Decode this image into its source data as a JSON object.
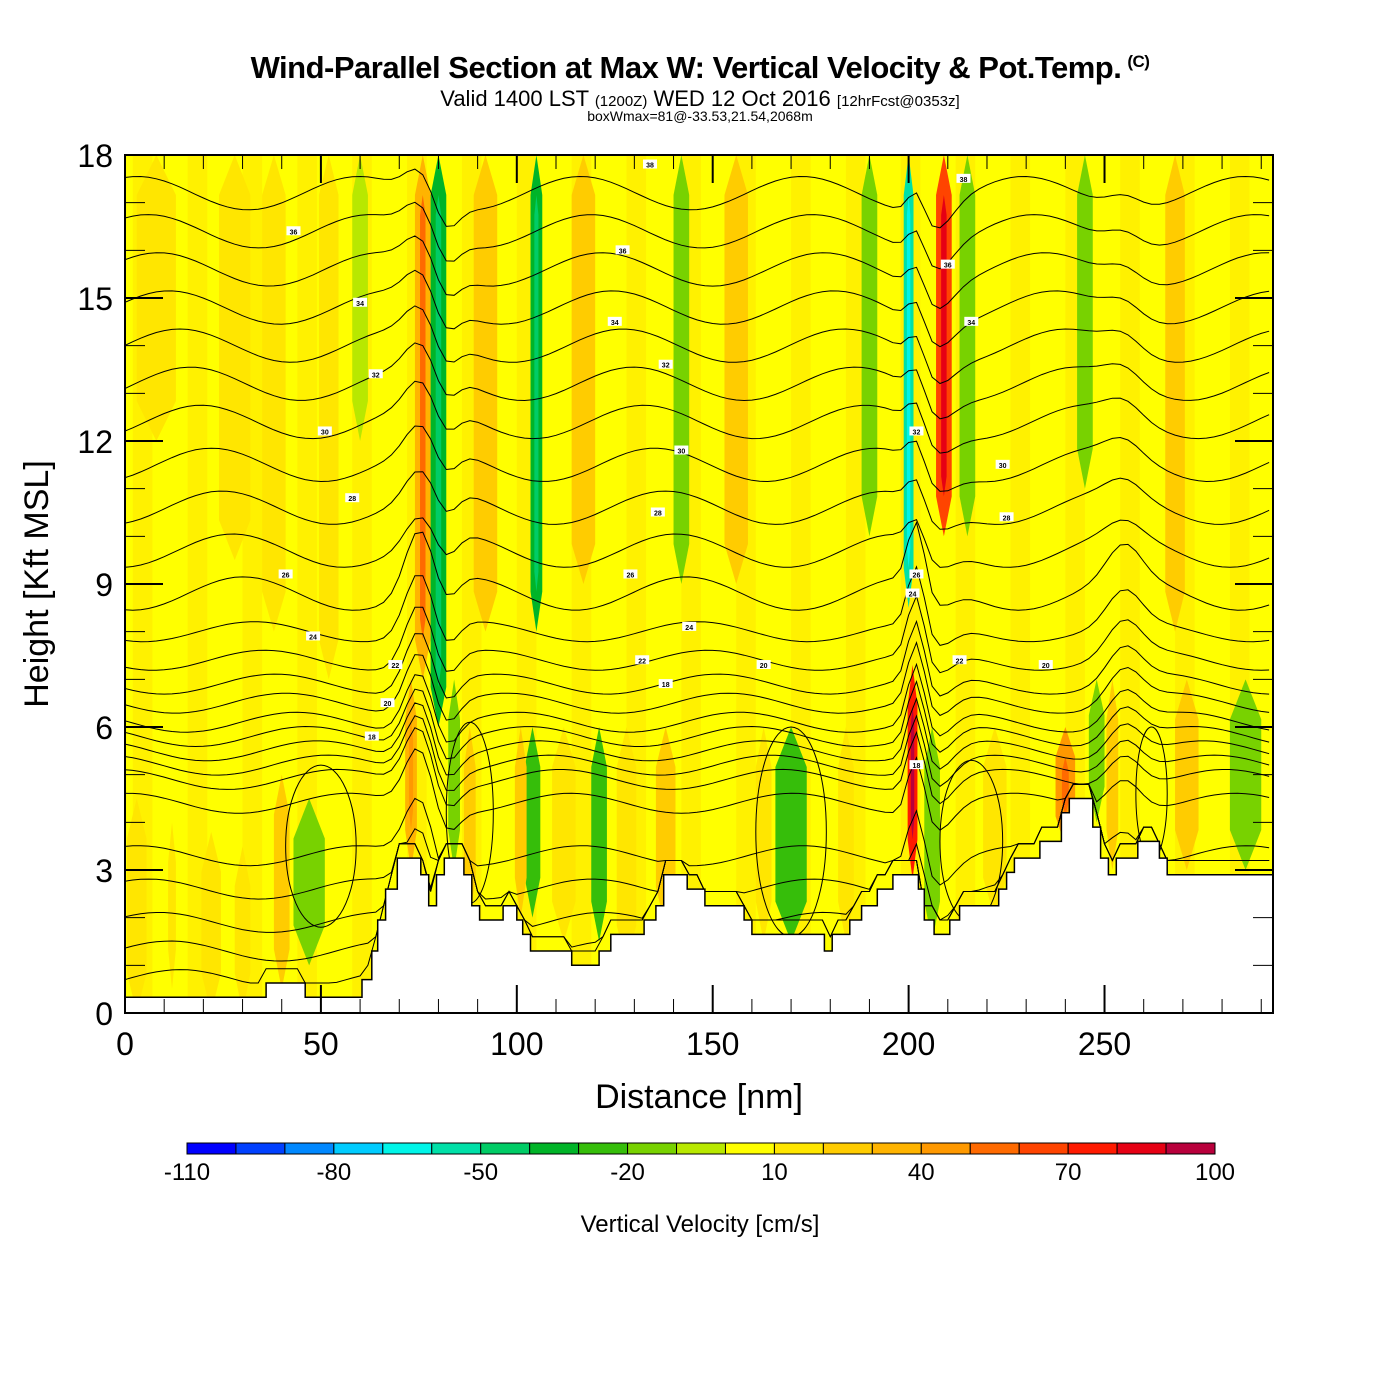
{
  "header": {
    "title": "Wind-Parallel Section at Max W: Vertical Velocity & Pot.Temp.",
    "copyright_mark": "(C)",
    "valid_prefix": "Valid 1400 LST",
    "valid_utc": "(1200Z)",
    "valid_date": "WED 12 Oct 2016",
    "forecast_info": "[12hrFcst@0353z]",
    "box_info": "boxWmax=81@-33.53,21.54,2068m"
  },
  "chart_data": {
    "type": "heatmap",
    "title": "Wind-Parallel Section at Max W: Vertical Velocity & Pot.Temp.",
    "xlabel": "Distance [nm]",
    "ylabel": "Height [Kft MSL]",
    "xlim": [
      0,
      293
    ],
    "ylim": [
      0,
      18
    ],
    "x_ticks": [
      0,
      50,
      100,
      150,
      200,
      250
    ],
    "x_tick_labels": [
      "0",
      "50",
      "100",
      "150",
      "200",
      "250"
    ],
    "x_minor_step": 10,
    "y_ticks": [
      0,
      3,
      6,
      9,
      12,
      15,
      18
    ],
    "y_tick_labels": [
      "0",
      "3",
      "6",
      "9",
      "12",
      "15",
      "18"
    ],
    "y_minor_step": 1,
    "grid": false,
    "colorbar": {
      "label": "Vertical Velocity [cm/s]",
      "placement": "bottom",
      "bounds": [
        -110,
        100
      ],
      "step": 10,
      "tick_values": [
        -110,
        -80,
        -50,
        -20,
        10,
        40,
        70,
        100
      ],
      "tick_labels": [
        "-110",
        "-80",
        "-50",
        "-20",
        "10",
        "40",
        "70",
        "100"
      ],
      "colors": [
        "#0000ff",
        "#0040ff",
        "#0088ff",
        "#00ccff",
        "#00f5e8",
        "#00e0a8",
        "#00cc66",
        "#00b428",
        "#36be0a",
        "#78d200",
        "#b8e800",
        "#ffff00",
        "#ffe600",
        "#ffcc00",
        "#ffb400",
        "#ff9900",
        "#ff6a00",
        "#ff4400",
        "#ff1a00",
        "#e60014",
        "#b8003c"
      ]
    },
    "background_w": 5,
    "w_bands": [
      {
        "x": 3,
        "w": 5,
        "z0": 0,
        "z1": 4.5,
        "value": 10
      },
      {
        "x": 12,
        "w": 2,
        "z0": 0.5,
        "z1": 4,
        "value": 10
      },
      {
        "x": 8,
        "w": 10,
        "z0": 12,
        "z1": 18,
        "value": 10
      },
      {
        "x": 22,
        "w": 5,
        "z0": 0,
        "z1": 3.8,
        "value": 10
      },
      {
        "x": 30,
        "w": 4,
        "z0": 0,
        "z1": 3.5,
        "value": 10
      },
      {
        "x": 28,
        "w": 8,
        "z0": 9.5,
        "z1": 18,
        "value": 10
      },
      {
        "x": 40,
        "w": 4,
        "z0": 0.5,
        "z1": 5,
        "value": 25
      },
      {
        "x": 47,
        "w": 8,
        "z0": 1,
        "z1": 4.5,
        "value": -20
      },
      {
        "x": 38,
        "w": 6,
        "z0": 8,
        "z1": 18,
        "value": 10
      },
      {
        "x": 52,
        "w": 5,
        "z0": 7,
        "z1": 18,
        "value": 10
      },
      {
        "x": 60,
        "w": 4,
        "z0": 12,
        "z1": 18,
        "value": -10
      },
      {
        "x": 73,
        "w": 3,
        "z0": 3,
        "z1": 7,
        "value": 30
      },
      {
        "x": 76,
        "w": 4,
        "z0": 7,
        "z1": 18,
        "value": 35
      },
      {
        "x": 80,
        "w": 4,
        "z0": 6,
        "z1": 18,
        "value": -35
      },
      {
        "x": 84,
        "w": 3,
        "z0": 3,
        "z1": 7,
        "value": -20
      },
      {
        "x": 88,
        "w": 3,
        "z0": 2,
        "z1": 6,
        "value": 25
      },
      {
        "x": 92,
        "w": 6,
        "z0": 8,
        "z1": 18,
        "value": 25
      },
      {
        "x": 104,
        "w": 4,
        "z0": 2,
        "z1": 6,
        "value": -25
      },
      {
        "x": 101,
        "w": 3,
        "z0": 2,
        "z1": 6,
        "value": 25
      },
      {
        "x": 105,
        "w": 3,
        "z0": 8,
        "z1": 18,
        "value": -35
      },
      {
        "x": 112,
        "w": 6,
        "z0": 1.5,
        "z1": 6,
        "value": 10
      },
      {
        "x": 117,
        "w": 6,
        "z0": 9,
        "z1": 18,
        "value": 20
      },
      {
        "x": 121,
        "w": 4,
        "z0": 1.5,
        "z1": 6,
        "value": -25
      },
      {
        "x": 128,
        "w": 5,
        "z0": 1,
        "z1": 6,
        "value": 10
      },
      {
        "x": 138,
        "w": 5,
        "z0": 1.8,
        "z1": 6,
        "value": 25
      },
      {
        "x": 142,
        "w": 4,
        "z0": 9,
        "z1": 18,
        "value": -20
      },
      {
        "x": 156,
        "w": 6,
        "z0": 9,
        "z1": 18,
        "value": 25
      },
      {
        "x": 170,
        "w": 8,
        "z0": 1.5,
        "z1": 6,
        "value": -25
      },
      {
        "x": 163,
        "w": 4,
        "z0": 1.5,
        "z1": 6,
        "value": 10
      },
      {
        "x": 184,
        "w": 4,
        "z0": 1.5,
        "z1": 6,
        "value": 10
      },
      {
        "x": 190,
        "w": 4,
        "z0": 10,
        "z1": 18,
        "value": -20
      },
      {
        "x": 200,
        "w": 2.5,
        "z0": 8.5,
        "z1": 18,
        "value": -55
      },
      {
        "x": 201,
        "w": 2.5,
        "z0": 2.8,
        "z1": 7.3,
        "value": 75
      },
      {
        "x": 209,
        "w": 4,
        "z0": 10,
        "z1": 18,
        "value": 65
      },
      {
        "x": 215,
        "w": 4,
        "z0": 10,
        "z1": 18,
        "value": -20
      },
      {
        "x": 206,
        "w": 4,
        "z0": 1.5,
        "z1": 6,
        "value": -20
      },
      {
        "x": 222,
        "w": 6,
        "z0": 2,
        "z1": 6,
        "value": 10
      },
      {
        "x": 240,
        "w": 5,
        "z0": 3.5,
        "z1": 6,
        "value": 40
      },
      {
        "x": 245,
        "w": 4,
        "z0": 11,
        "z1": 18,
        "value": -20
      },
      {
        "x": 248,
        "w": 4,
        "z0": 4,
        "z1": 7,
        "value": -20
      },
      {
        "x": 252,
        "w": 3,
        "z0": 3,
        "z1": 7,
        "value": 25
      },
      {
        "x": 268,
        "w": 5,
        "z0": 8,
        "z1": 18,
        "value": 25
      },
      {
        "x": 271,
        "w": 6,
        "z0": 3,
        "z1": 7,
        "value": 25
      },
      {
        "x": 286,
        "w": 8,
        "z0": 3,
        "z1": 7,
        "value": -20
      }
    ],
    "terrain": [
      [
        0,
        0.33
      ],
      [
        36,
        0.33
      ],
      [
        36,
        0.63
      ],
      [
        46,
        0.63
      ],
      [
        46,
        0.33
      ],
      [
        60.5,
        0.33
      ],
      [
        60.5,
        0.7
      ],
      [
        63,
        0.7
      ],
      [
        63,
        1.3
      ],
      [
        64.5,
        1.3
      ],
      [
        64.5,
        1.95
      ],
      [
        66.5,
        1.95
      ],
      [
        66.5,
        2.6
      ],
      [
        69.5,
        2.6
      ],
      [
        69.5,
        3.25
      ],
      [
        75.5,
        3.25
      ],
      [
        75.5,
        2.9
      ],
      [
        77.5,
        2.9
      ],
      [
        77.5,
        2.25
      ],
      [
        79.5,
        2.25
      ],
      [
        79.5,
        2.9
      ],
      [
        81.5,
        2.9
      ],
      [
        81.5,
        3.25
      ],
      [
        86.5,
        3.25
      ],
      [
        86.5,
        2.9
      ],
      [
        88.5,
        2.9
      ],
      [
        88.5,
        2.25
      ],
      [
        90.5,
        2.25
      ],
      [
        90.5,
        1.95
      ],
      [
        96.5,
        1.95
      ],
      [
        96.5,
        2.25
      ],
      [
        100,
        2.25
      ],
      [
        100,
        1.95
      ],
      [
        101.5,
        1.95
      ],
      [
        101.5,
        1.65
      ],
      [
        103.5,
        1.65
      ],
      [
        103.5,
        1.3
      ],
      [
        114,
        1.3
      ],
      [
        114,
        1.0
      ],
      [
        121,
        1.0
      ],
      [
        121,
        1.3
      ],
      [
        124,
        1.3
      ],
      [
        124,
        1.65
      ],
      [
        132.5,
        1.65
      ],
      [
        132.5,
        1.95
      ],
      [
        135.5,
        1.95
      ],
      [
        135.5,
        2.25
      ],
      [
        137.5,
        2.25
      ],
      [
        137.5,
        2.9
      ],
      [
        143.5,
        2.9
      ],
      [
        143.5,
        2.6
      ],
      [
        148,
        2.6
      ],
      [
        148,
        2.25
      ],
      [
        158,
        2.25
      ],
      [
        158,
        1.95
      ],
      [
        160,
        1.95
      ],
      [
        160,
        1.65
      ],
      [
        178.5,
        1.65
      ],
      [
        178.5,
        1.3
      ],
      [
        180.5,
        1.3
      ],
      [
        180.5,
        1.65
      ],
      [
        185,
        1.65
      ],
      [
        185,
        1.95
      ],
      [
        188,
        1.95
      ],
      [
        188,
        2.25
      ],
      [
        192,
        2.25
      ],
      [
        192,
        2.6
      ],
      [
        196,
        2.6
      ],
      [
        196,
        2.9
      ],
      [
        202.5,
        2.9
      ],
      [
        202.5,
        2.6
      ],
      [
        204,
        2.6
      ],
      [
        204,
        1.95
      ],
      [
        206.5,
        1.95
      ],
      [
        206.5,
        1.65
      ],
      [
        210.5,
        1.65
      ],
      [
        210.5,
        1.95
      ],
      [
        213,
        1.95
      ],
      [
        213,
        2.25
      ],
      [
        223,
        2.25
      ],
      [
        223,
        2.6
      ],
      [
        225,
        2.6
      ],
      [
        225,
        2.95
      ],
      [
        227,
        2.95
      ],
      [
        227,
        3.25
      ],
      [
        233.5,
        3.25
      ],
      [
        233.5,
        3.6
      ],
      [
        239,
        3.6
      ],
      [
        239,
        4.2
      ],
      [
        241,
        4.2
      ],
      [
        241,
        4.5
      ],
      [
        247,
        4.5
      ],
      [
        247,
        3.9
      ],
      [
        249,
        3.9
      ],
      [
        249,
        3.25
      ],
      [
        251,
        3.25
      ],
      [
        251,
        2.9
      ],
      [
        253,
        2.9
      ],
      [
        253,
        3.25
      ],
      [
        258.5,
        3.25
      ],
      [
        258.5,
        3.6
      ],
      [
        264,
        3.6
      ],
      [
        264,
        3.25
      ],
      [
        266,
        3.25
      ],
      [
        266,
        2.9
      ],
      [
        293,
        2.9
      ]
    ],
    "theta_contours": [
      {
        "base": 0.7,
        "label": ""
      },
      {
        "base": 1.3,
        "label": ""
      },
      {
        "base": 1.9,
        "label": ""
      },
      {
        "base": 2.6,
        "label": ""
      },
      {
        "base": 3.3,
        "label": ""
      },
      {
        "base": 4.4,
        "label": ""
      },
      {
        "base": 4.9,
        "label": "18"
      },
      {
        "base": 5.2,
        "label": ""
      },
      {
        "base": 5.5,
        "label": ""
      },
      {
        "base": 5.8,
        "label": "20"
      },
      {
        "base": 6.1,
        "label": ""
      },
      {
        "base": 6.5,
        "label": "22"
      },
      {
        "base": 6.9,
        "label": ""
      },
      {
        "base": 7.4,
        "label": "24"
      },
      {
        "base": 8.0,
        "label": ""
      },
      {
        "base": 8.8,
        "label": "26"
      },
      {
        "base": 9.7,
        "label": ""
      },
      {
        "base": 10.6,
        "label": "28"
      },
      {
        "base": 11.5,
        "label": ""
      },
      {
        "base": 12.4,
        "label": "30"
      },
      {
        "base": 13.2,
        "label": ""
      },
      {
        "base": 14.0,
        "label": "32"
      },
      {
        "base": 14.8,
        "label": ""
      },
      {
        "base": 15.6,
        "label": "34"
      },
      {
        "base": 16.4,
        "label": ""
      },
      {
        "base": 17.2,
        "label": "36"
      }
    ],
    "contour_labels": [
      {
        "text": "36",
        "x": 43,
        "z": 16.4
      },
      {
        "text": "34",
        "x": 60,
        "z": 14.9
      },
      {
        "text": "32",
        "x": 64,
        "z": 13.4
      },
      {
        "text": "30",
        "x": 51,
        "z": 12.2
      },
      {
        "text": "28",
        "x": 58,
        "z": 10.8
      },
      {
        "text": "26",
        "x": 41,
        "z": 9.2
      },
      {
        "text": "24",
        "x": 48,
        "z": 7.9
      },
      {
        "text": "22",
        "x": 69,
        "z": 7.3
      },
      {
        "text": "20",
        "x": 67,
        "z": 6.5
      },
      {
        "text": "18",
        "x": 63,
        "z": 5.8
      },
      {
        "text": "38",
        "x": 134,
        "z": 17.8
      },
      {
        "text": "36",
        "x": 127,
        "z": 16.0
      },
      {
        "text": "34",
        "x": 125,
        "z": 14.5
      },
      {
        "text": "32",
        "x": 138,
        "z": 13.6
      },
      {
        "text": "30",
        "x": 142,
        "z": 11.8
      },
      {
        "text": "28",
        "x": 136,
        "z": 10.5
      },
      {
        "text": "26",
        "x": 129,
        "z": 9.2
      },
      {
        "text": "24",
        "x": 144,
        "z": 8.1
      },
      {
        "text": "22",
        "x": 132,
        "z": 7.4
      },
      {
        "text": "18",
        "x": 138,
        "z": 6.9
      },
      {
        "text": "20",
        "x": 163,
        "z": 7.3
      },
      {
        "text": "38",
        "x": 214,
        "z": 17.5
      },
      {
        "text": "36",
        "x": 210,
        "z": 15.7
      },
      {
        "text": "34",
        "x": 216,
        "z": 14.5
      },
      {
        "text": "32",
        "x": 202,
        "z": 12.2
      },
      {
        "text": "30",
        "x": 224,
        "z": 11.5
      },
      {
        "text": "28",
        "x": 225,
        "z": 10.4
      },
      {
        "text": "26",
        "x": 202,
        "z": 9.2
      },
      {
        "text": "24",
        "x": 201,
        "z": 8.8
      },
      {
        "text": "22",
        "x": 213,
        "z": 7.4
      },
      {
        "text": "20",
        "x": 235,
        "z": 7.3
      },
      {
        "text": "18",
        "x": 202,
        "z": 5.2
      }
    ]
  }
}
